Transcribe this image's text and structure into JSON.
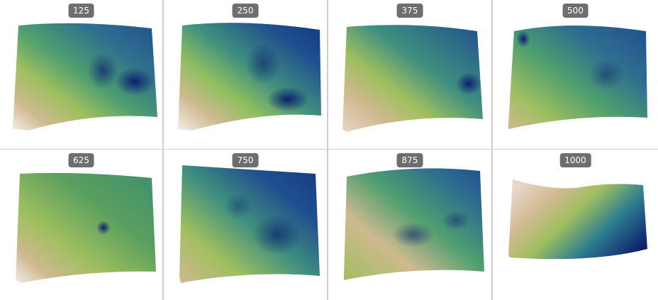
{
  "panels": [
    {
      "label": "125"
    },
    {
      "label": "250"
    },
    {
      "label": "375"
    },
    {
      "label": "500"
    },
    {
      "label": "625"
    },
    {
      "label": "750"
    },
    {
      "label": "875"
    },
    {
      "label": "1000"
    }
  ],
  "colors": {
    "deep": "#0b1f6e",
    "blue": "#1f4f8f",
    "teal": "#2f7f8f",
    "green": "#5a9f5f",
    "lime": "#9fbf5f",
    "tan": "#cfb98f",
    "pale": "#f4ece8",
    "badge": "#6e6e6e"
  }
}
